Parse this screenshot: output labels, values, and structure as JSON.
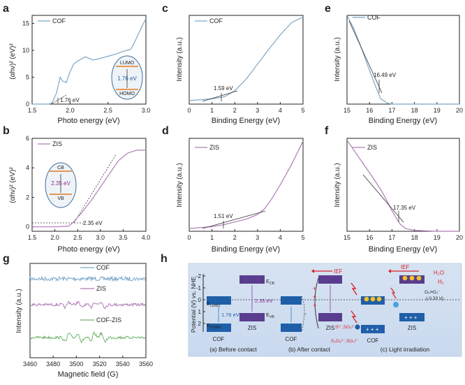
{
  "colors": {
    "cof": "#7aa6c8",
    "zis": "#b07ab8",
    "cofzis": "#6fb56c",
    "ief": "#d9232a",
    "ref_line": "#333333",
    "band": "#5b3d8f",
    "cofband": "#1f5fa8"
  },
  "chart_data": [
    {
      "panel": "a",
      "type": "line",
      "xlabel": "Photo energy (eV)",
      "ylabel": "(αhν)² (eV)²",
      "xlim": [
        1.5,
        3.0
      ],
      "ylim": [
        0,
        16.5
      ],
      "xticks": [
        "1.5",
        "2.0",
        "2.5",
        "3.0"
      ],
      "yticks": [
        "0",
        "5",
        "10",
        "15"
      ],
      "legend": [
        "COF"
      ],
      "legend_pos": "top-left",
      "annotation": "1.76 eV",
      "inset": {
        "top": "LUMO",
        "bottom": "HOMO",
        "gap": "1.76 eV"
      },
      "series": [
        {
          "name": "COF",
          "x": [
            1.5,
            1.72,
            1.76,
            1.82,
            1.87,
            1.9,
            1.95,
            2.0,
            2.05,
            2.1,
            2.2,
            2.3,
            2.4,
            2.5,
            2.6,
            2.7,
            2.8,
            2.85,
            2.9,
            2.95,
            3.0
          ],
          "y": [
            0,
            0,
            0.2,
            2.0,
            5.0,
            4.3,
            4.0,
            6.0,
            7.5,
            8.0,
            8.8,
            8.2,
            8.5,
            8.9,
            9.3,
            9.8,
            10.2,
            11.5,
            13.0,
            14.5,
            15.9
          ]
        }
      ]
    },
    {
      "panel": "b",
      "type": "line",
      "xlabel": "Photo energy (eV)",
      "ylabel": "(αhν)² (eV)²",
      "xlim": [
        1.5,
        4.0
      ],
      "ylim": [
        -0.3,
        6.0
      ],
      "xticks": [
        "1.5",
        "2.0",
        "2.5",
        "3.0",
        "3.5",
        "4.0"
      ],
      "yticks": [
        "0",
        "2",
        "4",
        "6"
      ],
      "legend": [
        "ZIS"
      ],
      "legend_pos": "top-left",
      "annotation": "2.35 eV",
      "inset": {
        "top": "CB",
        "bottom": "VB",
        "gap": "2.35 eV"
      },
      "series": [
        {
          "name": "ZIS",
          "x": [
            1.5,
            2.0,
            2.3,
            2.4,
            2.6,
            2.8,
            3.0,
            3.2,
            3.4,
            3.6,
            3.8,
            4.0
          ],
          "y": [
            0,
            0,
            0.05,
            0.3,
            1.0,
            1.8,
            2.7,
            3.6,
            4.5,
            5.0,
            5.2,
            5.2
          ]
        }
      ]
    },
    {
      "panel": "c",
      "type": "line",
      "xlabel": "Binding Energy (eV)",
      "ylabel": "Intensity (a.u.)",
      "xlim": [
        0,
        5
      ],
      "ylim": [
        0,
        1
      ],
      "xticks": [
        "0",
        "1",
        "2",
        "3",
        "4",
        "5"
      ],
      "legend": [
        "COF"
      ],
      "legend_pos": "top-left",
      "annotation": "1.59 eV",
      "series": [
        {
          "name": "COF",
          "x": [
            0,
            0.5,
            1.0,
            1.5,
            1.6,
            2.0,
            2.5,
            3.0,
            3.5,
            4.0,
            4.5,
            5.0
          ],
          "y": [
            0.04,
            0.05,
            0.06,
            0.08,
            0.09,
            0.15,
            0.28,
            0.45,
            0.62,
            0.78,
            0.92,
            0.98
          ]
        }
      ]
    },
    {
      "panel": "d",
      "type": "line",
      "xlabel": "Binding Energy (eV)",
      "ylabel": "Intensity (a.u.)",
      "xlim": [
        0,
        5
      ],
      "ylim": [
        0,
        1
      ],
      "xticks": [
        "0",
        "1",
        "2",
        "3",
        "4",
        "5"
      ],
      "legend": [
        "ZIS"
      ],
      "legend_pos": "top-left",
      "annotation": "1.51 eV",
      "series": [
        {
          "name": "ZIS",
          "x": [
            0,
            0.5,
            1.0,
            1.5,
            2.0,
            2.5,
            3.0,
            3.3,
            3.6,
            4.0,
            4.5,
            5.0
          ],
          "y": [
            0.03,
            0.04,
            0.05,
            0.07,
            0.1,
            0.13,
            0.18,
            0.24,
            0.34,
            0.5,
            0.72,
            0.97
          ]
        }
      ]
    },
    {
      "panel": "e",
      "type": "line",
      "xlabel": "Binding Energy (eV)",
      "ylabel": "Intensity (a.u.)",
      "xlim": [
        15,
        20
      ],
      "ylim": [
        0,
        1
      ],
      "xticks": [
        "15",
        "16",
        "17",
        "18",
        "19",
        "20"
      ],
      "legend": [
        "COF"
      ],
      "legend_pos": "top-left",
      "annotation": "16.49 eV",
      "series": [
        {
          "name": "COF",
          "x": [
            15,
            15.3,
            15.6,
            16.0,
            16.3,
            16.5,
            16.8,
            17.0,
            17.5,
            18,
            19,
            20
          ],
          "y": [
            1.0,
            0.85,
            0.66,
            0.38,
            0.18,
            0.06,
            0.01,
            0,
            0,
            0,
            0,
            0
          ]
        }
      ]
    },
    {
      "panel": "f",
      "type": "line",
      "xlabel": "Binding Energy (eV)",
      "ylabel": "Intensity (a.u.)",
      "xlim": [
        15,
        20
      ],
      "ylim": [
        0,
        1
      ],
      "xticks": [
        "15",
        "16",
        "17",
        "18",
        "19",
        "20"
      ],
      "legend": [
        "ZIS"
      ],
      "legend_pos": "top-left",
      "annotation": "17.35 eV",
      "series": [
        {
          "name": "ZIS",
          "x": [
            15,
            15.4,
            15.8,
            16.2,
            16.6,
            17.0,
            17.35,
            17.6,
            18,
            19,
            20
          ],
          "y": [
            0.98,
            0.84,
            0.7,
            0.56,
            0.41,
            0.22,
            0.08,
            0.03,
            0.01,
            0,
            0
          ]
        }
      ]
    },
    {
      "panel": "g",
      "type": "line",
      "xlabel": "Magnetic field (G)",
      "ylabel": "Intensity (a.u.)",
      "xlim": [
        3460,
        3560
      ],
      "xticks": [
        "3460",
        "3480",
        "3500",
        "3520",
        "3540",
        "3560"
      ],
      "legend": [
        "COF",
        "ZIS",
        "COF-ZIS"
      ],
      "series": [
        {
          "name": "COF"
        },
        {
          "name": "ZIS"
        },
        {
          "name": "COF-ZIS"
        }
      ]
    }
  ],
  "labels": {
    "a": "a",
    "b": "b",
    "c": "c",
    "d": "d",
    "e": "e",
    "f": "f",
    "g": "g",
    "h": "h"
  },
  "scheme": {
    "yaxis_title": "Potential (V) vs. NHE",
    "yticks": [
      "-2",
      "-1",
      "0",
      "1",
      "2"
    ],
    "e_lumo": "E",
    "e_lumo_sub": "LUMO",
    "e_homo": "E",
    "e_homo_sub": "HOMO",
    "e_cb": "E",
    "e_cb_sub": "CB",
    "e_vb": "E",
    "e_vb_sub": "VB",
    "cof_gap": "1.76 eV",
    "zis_gap": "2.35 eV",
    "cof": "COF",
    "zis": "ZIS",
    "ief": "IEF",
    "sacrificial1": "S²⁻,SO₃²⁻",
    "sacrificial2": "S₂O₃²⁻,SO₄²⁻",
    "o2_label": "O₂/•O₂⁻",
    "o2_potential": "(-0.33 V)",
    "h2o": "H₂O",
    "h2": "H₂",
    "caption_a": "(a) Before contact",
    "caption_b": "(b) After contact",
    "caption_c": "(c) Light irradiation"
  }
}
